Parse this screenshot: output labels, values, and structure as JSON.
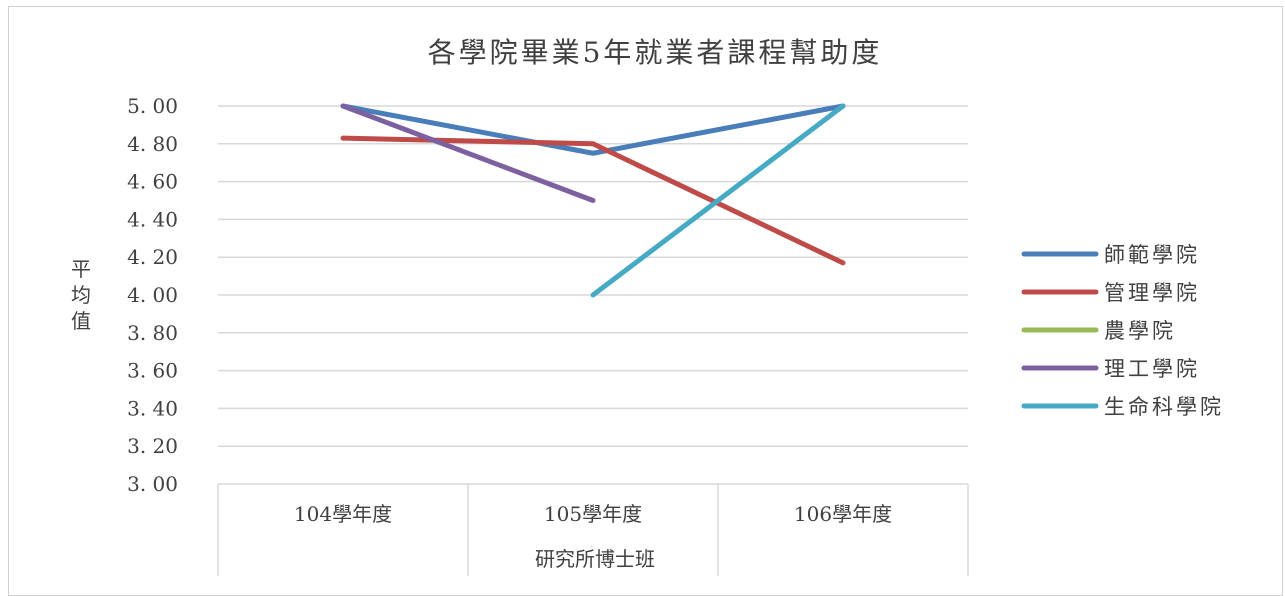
{
  "chart_data": {
    "type": "line",
    "title": "各學院畢業5年就業者課程幫助度",
    "ylabel": "平均值",
    "xlabel": "",
    "category_group_label": "研究所博士班",
    "categories": [
      "104學年度",
      "105學年度",
      "106學年度"
    ],
    "ylim": [
      3.0,
      5.0
    ],
    "yticks": [
      "3. 00",
      "3. 20",
      "3. 40",
      "3. 60",
      "3. 80",
      "4. 00",
      "4. 20",
      "4. 40",
      "4. 60",
      "4. 80",
      "5. 00"
    ],
    "ytick_values": [
      3.0,
      3.2,
      3.4,
      3.6,
      3.8,
      4.0,
      4.2,
      4.4,
      4.6,
      4.8,
      5.0
    ],
    "grid": true,
    "legend_position": "right",
    "series": [
      {
        "name": "師範學院",
        "color": "#4a7ebb",
        "values": [
          5.0,
          4.75,
          5.0
        ]
      },
      {
        "name": "管理學院",
        "color": "#be4b48",
        "values": [
          4.83,
          4.8,
          4.17
        ]
      },
      {
        "name": "農學院",
        "color": "#98b954",
        "values": [
          null,
          null,
          null
        ]
      },
      {
        "name": "理工學院",
        "color": "#7d60a0",
        "values": [
          5.0,
          4.5,
          null
        ]
      },
      {
        "name": "生命科學院",
        "color": "#46aac5",
        "values": [
          null,
          4.0,
          5.0
        ]
      }
    ]
  }
}
